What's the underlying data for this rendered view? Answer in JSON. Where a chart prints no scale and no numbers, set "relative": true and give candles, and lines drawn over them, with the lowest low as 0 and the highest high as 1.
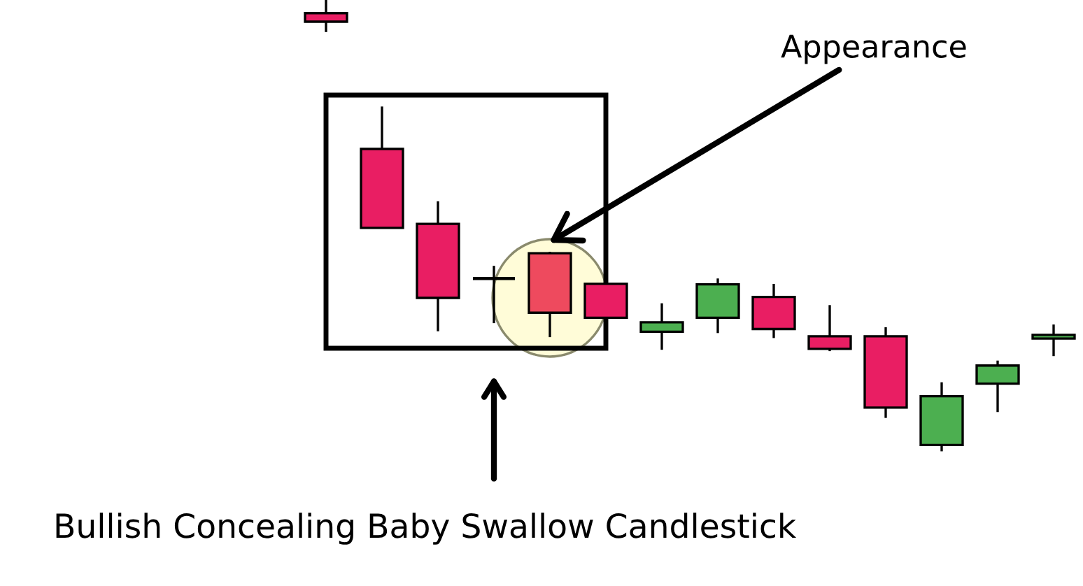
{
  "chart_data": {
    "type": "candlestick",
    "relative": true,
    "categories": [
      null,
      null,
      null,
      null,
      null,
      null,
      null,
      null,
      null,
      null,
      null,
      null,
      null,
      null
    ],
    "ohlc": [
      [
        0.971,
        1.0,
        0.929,
        0.952
      ],
      [
        0.67,
        0.764,
        0.495,
        0.495
      ],
      [
        0.504,
        0.554,
        0.266,
        0.34
      ],
      [
        0.383,
        0.411,
        0.284,
        0.383
      ],
      [
        0.439,
        0.442,
        0.253,
        0.307
      ],
      [
        0.371,
        0.371,
        0.296,
        0.296
      ],
      [
        0.265,
        0.328,
        0.225,
        0.286
      ],
      [
        0.296,
        0.383,
        0.262,
        0.37
      ],
      [
        0.342,
        0.371,
        0.251,
        0.271
      ],
      [
        0.255,
        0.324,
        0.222,
        0.227
      ],
      [
        0.255,
        0.275,
        0.074,
        0.097
      ],
      [
        0.014,
        0.153,
        0.0,
        0.122
      ],
      [
        0.15,
        0.201,
        0.087,
        0.19
      ],
      [
        0.25,
        0.281,
        0.211,
        0.258
      ]
    ],
    "colors": [
      "#e91e63",
      "#e91e63",
      "#e91e63",
      "#000000",
      "#ee4a5e",
      "#e91e63",
      "#4caf50",
      "#4caf50",
      "#e91e63",
      "#e91e63",
      "#e91e63",
      "#4caf50",
      "#4caf50",
      "#4caf50"
    ],
    "annotations": [
      "Appearance",
      "Bullish Concealing Baby Swallow Candlestick"
    ]
  }
}
